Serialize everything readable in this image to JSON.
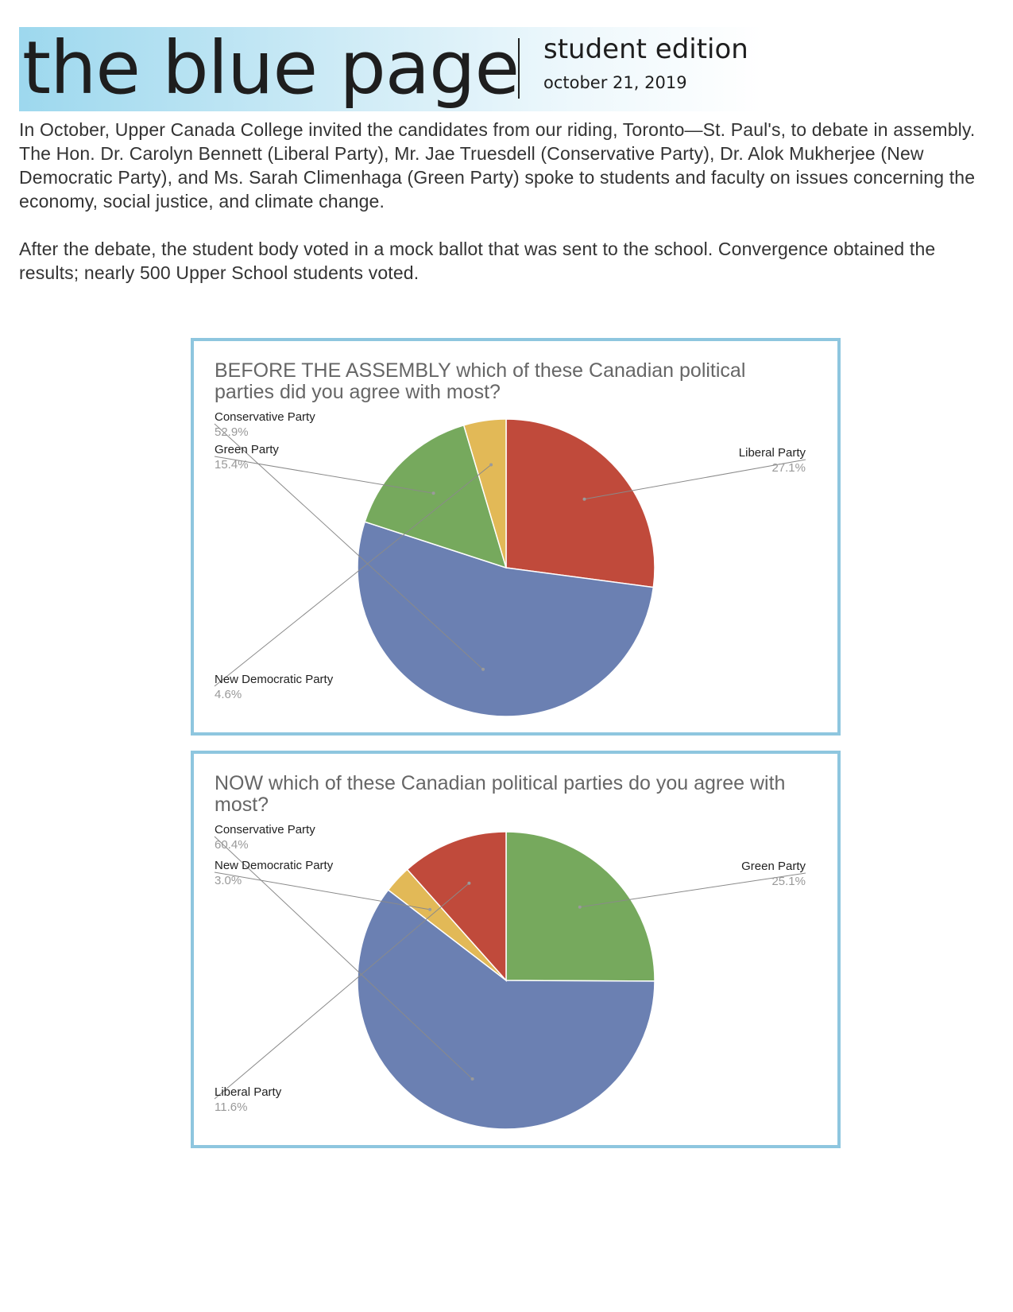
{
  "masthead": {
    "title": "the blue page",
    "edition": "student edition",
    "date": "october 21, 2019"
  },
  "article": {
    "paragraphs": [
      "In October, Upper Canada College invited the candidates from our riding, Toronto—St. Paul's, to debate in assembly. The Hon. Dr. Carolyn Bennett (Liberal Party), Mr. Jae Truesdell (Conservative Party), Dr. Alok Mukherjee (New Democratic Party), and Ms. Sarah Climenhaga (Green Party) spoke to students and faculty on issues concerning the economy, social justice, and climate change.",
      "After the debate, the student body voted in a mock ballot that was sent to the school. Convergence obtained the results; nearly 500 Upper School students voted."
    ]
  },
  "chart_data": [
    {
      "type": "pie",
      "title": "BEFORE THE ASSEMBLY which of these Canadian political parties did you agree with most?",
      "slices": [
        {
          "label": "Liberal Party",
          "value": 27.1,
          "display": "27.1%",
          "color": "#c04a3b",
          "side": "right"
        },
        {
          "label": "Conservative Party",
          "value": 52.9,
          "display": "52.9%",
          "color": "#6b80b2",
          "side": "left"
        },
        {
          "label": "Green Party",
          "value": 15.4,
          "display": "15.4%",
          "color": "#76a95d",
          "side": "left"
        },
        {
          "label": "New Democratic Party",
          "value": 4.6,
          "display": "4.6%",
          "color": "#e2b957",
          "side": "left"
        }
      ],
      "legend": "callout labels"
    },
    {
      "type": "pie",
      "title": "NOW which of these Canadian political parties do you agree with most?",
      "slices": [
        {
          "label": "Green Party",
          "value": 25.1,
          "display": "25.1%",
          "color": "#76a95d",
          "side": "right"
        },
        {
          "label": "Conservative Party",
          "value": 60.4,
          "display": "60.4%",
          "color": "#6b80b2",
          "side": "left"
        },
        {
          "label": "New Democratic Party",
          "value": 3.0,
          "display": "3.0%",
          "color": "#e2b957",
          "side": "left"
        },
        {
          "label": "Liberal Party",
          "value": 11.6,
          "display": "11.6%",
          "color": "#c04a3b",
          "side": "left"
        }
      ],
      "legend": "callout labels"
    }
  ]
}
